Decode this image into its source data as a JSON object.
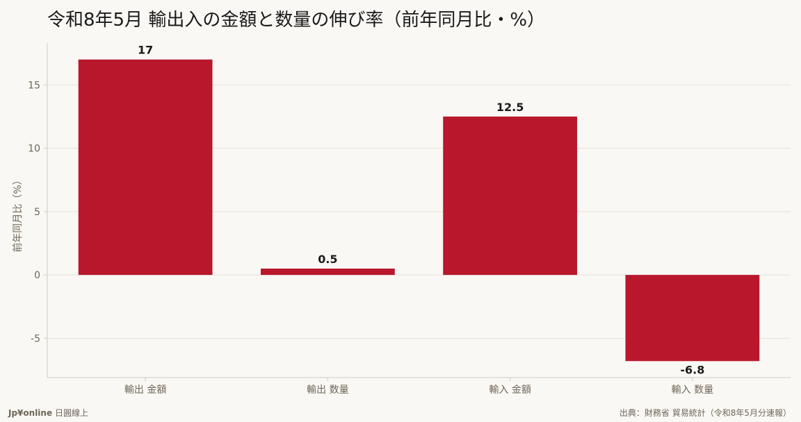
{
  "chart_data": {
    "type": "bar",
    "title": "令和8年5月 輸出入の金額と数量の伸び率（前年同月比・%）",
    "ylabel": "前年同月比（%）",
    "xlabel": "",
    "categories": [
      "輸出 金額",
      "輸出 数量",
      "輸入 金額",
      "輸入 数量"
    ],
    "values": [
      17,
      0.5,
      12.5,
      -6.8
    ],
    "value_labels": [
      "17",
      "0.5",
      "12.5",
      "-6.8"
    ],
    "ylim": [
      -8.1,
      18.3
    ],
    "yticks": [
      -5,
      0,
      5,
      10,
      15
    ],
    "grid": true,
    "bar_color": "#b8172c"
  },
  "footer": {
    "brand": "Jp¥online",
    "brand_sub": "日圓線上",
    "source": "出典：財務省 貿易統計（令和8年5月分速報）"
  },
  "colors": {
    "background": "#faf8f4",
    "grid": "#e4e0d8",
    "axis": "#cfcac0",
    "tick_text": "#6e6658"
  }
}
